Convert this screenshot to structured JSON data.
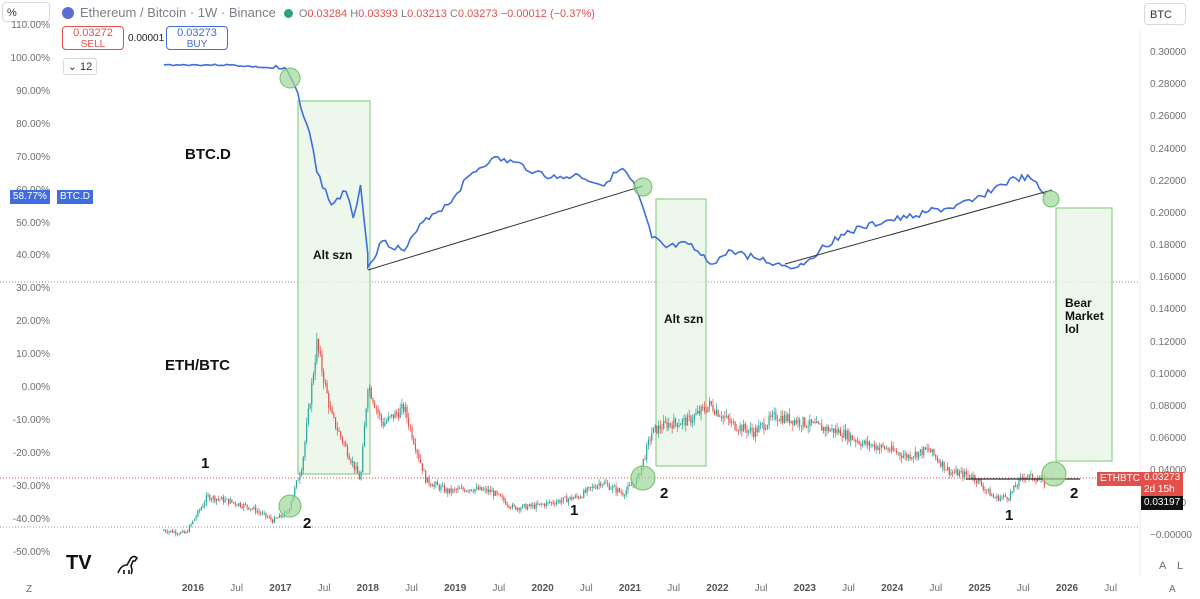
{
  "toolbar": {
    "scale_mode": "%",
    "symbol_title": "Ethereum / Bitcoin · 1W · Binance",
    "ohlc_o": "O",
    "ohlc_o_val": "0.03284",
    "ohlc_h": "H",
    "ohlc_h_val": "0.03393",
    "ohlc_l": "L",
    "ohlc_l_val": "0.03213",
    "ohlc_c": "C",
    "ohlc_c_val": "0.03273",
    "ohlc_change": "−0.00012 (−0.37%)",
    "sell_price": "0.03272",
    "sell_label": "SELL",
    "buy_price": "0.03273",
    "buy_label": "BUY",
    "spread": "0.00001",
    "interval_count": "12",
    "right_symbol": "BTC",
    "tradingview_logo": "TV",
    "auto_label": "A",
    "log_label": "L",
    "zoom_label": "Z"
  },
  "colors": {
    "btcd_line": "#3f6ddb",
    "candle_up": "#26a69a",
    "candle_down": "#e2504b",
    "box_fill": "#e9f5e6",
    "box_stroke": "#8fd08a",
    "circle_fill": "#9fd79a",
    "trendline": "#333333"
  },
  "chart_data": [
    {
      "type": "line",
      "series": [
        {
          "name": "BTC.D"
        }
      ],
      "title": "BTC.D",
      "axis": "left (%)",
      "current_value_label": "58.77%",
      "current_series_label": "BTC.D",
      "x": [
        "2015-09",
        "2015-12",
        "2016-06",
        "2016-12",
        "2017-02",
        "2017-03",
        "2017-05",
        "2017-06",
        "2017-08",
        "2017-10",
        "2017-11",
        "2017-12",
        "2018-01",
        "2018-01",
        "2018-03",
        "2018-06",
        "2018-09",
        "2018-12",
        "2019-03",
        "2019-06",
        "2019-09",
        "2019-12",
        "2020-03",
        "2020-06",
        "2020-09",
        "2020-12",
        "2021-01",
        "2021-02",
        "2021-04",
        "2021-06",
        "2021-09",
        "2021-12",
        "2022-03",
        "2022-06",
        "2022-09",
        "2022-12",
        "2023-03",
        "2023-06",
        "2023-09",
        "2023-12",
        "2024-03",
        "2024-06",
        "2024-09",
        "2024-12",
        "2025-03",
        "2025-06",
        "2025-08",
        "2025-10"
      ],
      "y": [
        98.5,
        98.5,
        98.5,
        97.5,
        96.5,
        92,
        78,
        66,
        56,
        60,
        52,
        62,
        41,
        37,
        45,
        42,
        52,
        56,
        65,
        70,
        69,
        66,
        64,
        65,
        62,
        67,
        64,
        60,
        46,
        43,
        44,
        38,
        42,
        40,
        38,
        37,
        42,
        47,
        49,
        51,
        52,
        54,
        55,
        57,
        61,
        64,
        64,
        59
      ],
      "ylim": [
        -55,
        112
      ]
    },
    {
      "type": "candlestick",
      "series": [
        {
          "name": "ETH/BTC"
        }
      ],
      "title": "ETH/BTC",
      "axis": "right (BTC)",
      "x": [
        "2015-09",
        "2015-12",
        "2016-03",
        "2016-06",
        "2016-09",
        "2016-12",
        "2017-02",
        "2017-04",
        "2017-06",
        "2017-08",
        "2017-10",
        "2017-12",
        "2018-01",
        "2018-03",
        "2018-06",
        "2018-09",
        "2018-12",
        "2019-03",
        "2019-06",
        "2019-09",
        "2019-12",
        "2020-03",
        "2020-06",
        "2020-09",
        "2020-12",
        "2021-02",
        "2021-04",
        "2021-06",
        "2021-09",
        "2021-12",
        "2022-03",
        "2022-06",
        "2022-09",
        "2022-12",
        "2023-03",
        "2023-06",
        "2023-09",
        "2023-12",
        "2024-03",
        "2024-06",
        "2024-09",
        "2024-12",
        "2025-03",
        "2025-05",
        "2025-07",
        "2025-09",
        "2025-10"
      ],
      "close": [
        0.004,
        0.002,
        0.025,
        0.022,
        0.018,
        0.01,
        0.015,
        0.045,
        0.12,
        0.075,
        0.055,
        0.035,
        0.095,
        0.07,
        0.08,
        0.035,
        0.028,
        0.03,
        0.028,
        0.018,
        0.019,
        0.022,
        0.025,
        0.034,
        0.027,
        0.035,
        0.065,
        0.07,
        0.072,
        0.082,
        0.07,
        0.065,
        0.075,
        0.072,
        0.068,
        0.065,
        0.058,
        0.055,
        0.05,
        0.054,
        0.04,
        0.038,
        0.024,
        0.025,
        0.038,
        0.036,
        0.0327
      ],
      "ylim": [
        -0.004,
        0.31
      ],
      "last_price_label": "ETHBTC",
      "last_price": "0.03273",
      "countdown": "2d 15h",
      "crosshair_price": "0.03197"
    }
  ],
  "axes": {
    "left_ticks": [
      "110.00%",
      "100.00%",
      "90.00%",
      "80.00%",
      "70.00%",
      "60.00%",
      "50.00%",
      "40.00%",
      "30.00%",
      "20.00%",
      "10.00%",
      "0.00%",
      "-10.00%",
      "-20.00%",
      "-30.00%",
      "-40.00%",
      "-50.00%"
    ],
    "right_ticks": [
      "0.30000",
      "0.28000",
      "0.26000",
      "0.24000",
      "0.22000",
      "0.20000",
      "0.18000",
      "0.16000",
      "0.14000",
      "0.12000",
      "0.10000",
      "0.08000",
      "0.06000",
      "0.04000",
      "0.02000",
      "−0.00000"
    ],
    "x_ticks": [
      {
        "label": "2016",
        "year": true
      },
      {
        "label": "Jul",
        "year": false
      },
      {
        "label": "2017",
        "year": true
      },
      {
        "label": "Jul",
        "year": false
      },
      {
        "label": "2018",
        "year": true
      },
      {
        "label": "Jul",
        "year": false
      },
      {
        "label": "2019",
        "year": true
      },
      {
        "label": "Jul",
        "year": false
      },
      {
        "label": "2020",
        "year": true
      },
      {
        "label": "Jul",
        "year": false
      },
      {
        "label": "2021",
        "year": true
      },
      {
        "label": "Jul",
        "year": false
      },
      {
        "label": "2022",
        "year": true
      },
      {
        "label": "Jul",
        "year": false
      },
      {
        "label": "2023",
        "year": true
      },
      {
        "label": "Jul",
        "year": false
      },
      {
        "label": "2024",
        "year": true
      },
      {
        "label": "Jul",
        "year": false
      },
      {
        "label": "2025",
        "year": true
      },
      {
        "label": "Jul",
        "year": false
      },
      {
        "label": "2026",
        "year": true
      },
      {
        "label": "Jul",
        "year": false
      }
    ]
  },
  "annotations": {
    "btcd_label": "BTC.D",
    "ethbtc_label": "ETH/BTC",
    "alt1": "Alt szn",
    "alt2": "Alt szn",
    "bear": "Bear\nMarket\nlol",
    "n1a": "1",
    "n2a": "2",
    "n1b": "1",
    "n2b": "2",
    "n1c": "1",
    "n2c": "2"
  }
}
